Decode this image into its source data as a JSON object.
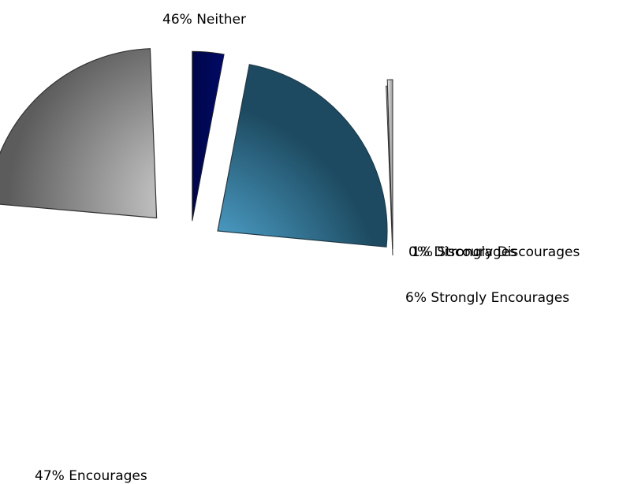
{
  "chart_data": {
    "type": "pie",
    "title": "",
    "slices": [
      {
        "name": "Neither",
        "value": 46,
        "label": "46% Neither",
        "color": "#8c8c8c"
      },
      {
        "name": "Discourages",
        "value": 0,
        "label": "0% Discourages",
        "color": "#a0a0a0"
      },
      {
        "name": "Strongly Discourages",
        "value": 1,
        "label": "1% Strongly Discourages",
        "color": "#cccccc"
      },
      {
        "name": "Strongly Encourages",
        "value": 6,
        "label": "6% Strongly Encourages",
        "color": "#00064a"
      },
      {
        "name": "Encourages",
        "value": 47,
        "label": "47% Encourages",
        "color": "#55bde8"
      }
    ],
    "legend": "none",
    "grid": false
  }
}
